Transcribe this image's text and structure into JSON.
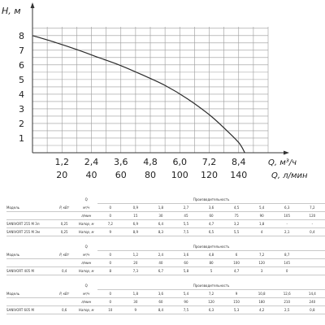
{
  "chart_data": {
    "type": "line",
    "ylabel": "H, м",
    "xlabel_1": "Q, м³/ч",
    "xlabel_2": "Q, л/мин",
    "xlim": [
      0,
      9.6
    ],
    "ylim": [
      0,
      8.6
    ],
    "x_ticks": [
      "1,2",
      "2,4",
      "3,6",
      "4,8",
      "6,0",
      "7,2",
      "8,4"
    ],
    "x2_ticks": [
      "20",
      "40",
      "60",
      "80",
      "100",
      "120",
      "140"
    ],
    "y_ticks": [
      "8",
      "7",
      "6",
      "5",
      "4",
      "3",
      "2",
      "1"
    ],
    "grid": true,
    "series": [
      {
        "x": [
          0,
          0.9,
          1.8,
          2.7,
          3.6,
          4.5,
          5.4,
          6.3,
          7.2,
          7.8,
          8.4,
          8.65
        ],
        "y": [
          8.0,
          7.55,
          7.05,
          6.5,
          5.95,
          5.3,
          4.6,
          3.7,
          2.6,
          1.7,
          0.7,
          0.0
        ]
      }
    ]
  },
  "tables": [
    {
      "q_symbol": "Q",
      "perf_label": "Производительность",
      "model_label": "Модель",
      "power_label": "P, кВт",
      "units": [
        "м³/ч",
        "л/мин"
      ],
      "head_unit": "Напор, м",
      "q_m3h": [
        "0",
        "0,9",
        "1,8",
        "2,7",
        "3,6",
        "4,5",
        "5,4",
        "6,3",
        "7,2"
      ],
      "q_lmin": [
        "0",
        "15",
        "30",
        "45",
        "60",
        "75",
        "90",
        "105",
        "120"
      ],
      "rows": [
        {
          "model": "SANIVORT 255 M Эл",
          "power": "0,25",
          "values": [
            "7,2",
            "6,9",
            "6,4",
            "5,5",
            "4,7",
            "3,2",
            "1,8",
            "-",
            "-"
          ]
        },
        {
          "model": "SANIVORT 255 M Эм",
          "power": "0,25",
          "values": [
            "9",
            "8,9",
            "8,3",
            "7,5",
            "6,5",
            "5,5",
            "4",
            "2,1",
            "0,4"
          ]
        }
      ]
    },
    {
      "q_symbol": "Q",
      "perf_label": "Производительность",
      "model_label": "Модель",
      "power_label": "P, кВт",
      "units": [
        "м³/ч",
        "л/мин"
      ],
      "head_unit": "Напор, м",
      "q_m3h": [
        "0",
        "1,2",
        "2,4",
        "3,6",
        "4,8",
        "6",
        "7,2",
        "8,7"
      ],
      "q_lmin": [
        "0",
        "20",
        "40",
        "60",
        "80",
        "100",
        "120",
        "145"
      ],
      "rows": [
        {
          "model": "SANIVORT 405 M",
          "power": "0,4",
          "values": [
            "8",
            "7,3",
            "6,7",
            "5,8",
            "5",
            "4,7",
            "3",
            "0"
          ]
        }
      ]
    },
    {
      "q_symbol": "Q",
      "perf_label": "Производительность",
      "model_label": "Модель",
      "power_label": "P, кВт",
      "units": [
        "м³/ч",
        "л/мин"
      ],
      "head_unit": "Напор, м",
      "q_m3h": [
        "0",
        "1,8",
        "3,6",
        "5,4",
        "7,2",
        "9",
        "10,8",
        "12,6",
        "14,4"
      ],
      "q_lmin": [
        "0",
        "30",
        "60",
        "90",
        "120",
        "150",
        "180",
        "210",
        "240"
      ],
      "rows": [
        {
          "model": "SANIVORT 605 M",
          "power": "0,6",
          "values": [
            "10",
            "9",
            "8,4",
            "7,5",
            "6,3",
            "5,3",
            "4,2",
            "2,5",
            "0,8"
          ]
        }
      ]
    }
  ]
}
